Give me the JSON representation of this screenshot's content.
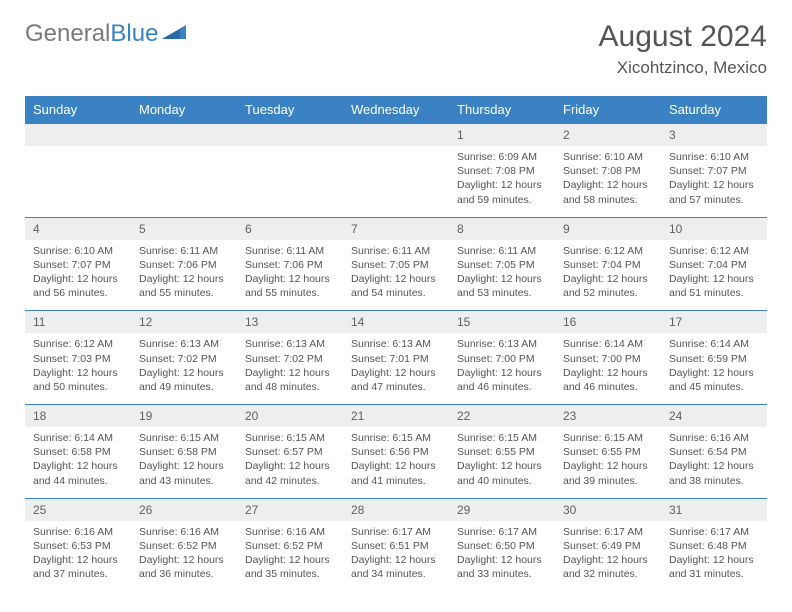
{
  "logo": {
    "text1": "General",
    "text2": "Blue"
  },
  "title": "August 2024",
  "location": "Xicohtzinco, Mexico",
  "colors": {
    "header_bg": "#3b82c4",
    "header_text": "#ffffff",
    "daynum_bg": "#eceef0",
    "daynum_text": "#606060",
    "body_text": "#555555",
    "logo_gray": "#7a7a7a",
    "logo_blue": "#3b82c4"
  },
  "daynames": [
    "Sunday",
    "Monday",
    "Tuesday",
    "Wednesday",
    "Thursday",
    "Friday",
    "Saturday"
  ],
  "weeks": [
    {
      "nums": [
        "",
        "",
        "",
        "",
        "1",
        "2",
        "3"
      ],
      "info": [
        [],
        [],
        [],
        [],
        [
          "Sunrise: 6:09 AM",
          "Sunset: 7:08 PM",
          "Daylight: 12 hours",
          "and 59 minutes."
        ],
        [
          "Sunrise: 6:10 AM",
          "Sunset: 7:08 PM",
          "Daylight: 12 hours",
          "and 58 minutes."
        ],
        [
          "Sunrise: 6:10 AM",
          "Sunset: 7:07 PM",
          "Daylight: 12 hours",
          "and 57 minutes."
        ]
      ]
    },
    {
      "nums": [
        "4",
        "5",
        "6",
        "7",
        "8",
        "9",
        "10"
      ],
      "info": [
        [
          "Sunrise: 6:10 AM",
          "Sunset: 7:07 PM",
          "Daylight: 12 hours",
          "and 56 minutes."
        ],
        [
          "Sunrise: 6:11 AM",
          "Sunset: 7:06 PM",
          "Daylight: 12 hours",
          "and 55 minutes."
        ],
        [
          "Sunrise: 6:11 AM",
          "Sunset: 7:06 PM",
          "Daylight: 12 hours",
          "and 55 minutes."
        ],
        [
          "Sunrise: 6:11 AM",
          "Sunset: 7:05 PM",
          "Daylight: 12 hours",
          "and 54 minutes."
        ],
        [
          "Sunrise: 6:11 AM",
          "Sunset: 7:05 PM",
          "Daylight: 12 hours",
          "and 53 minutes."
        ],
        [
          "Sunrise: 6:12 AM",
          "Sunset: 7:04 PM",
          "Daylight: 12 hours",
          "and 52 minutes."
        ],
        [
          "Sunrise: 6:12 AM",
          "Sunset: 7:04 PM",
          "Daylight: 12 hours",
          "and 51 minutes."
        ]
      ]
    },
    {
      "nums": [
        "11",
        "12",
        "13",
        "14",
        "15",
        "16",
        "17"
      ],
      "info": [
        [
          "Sunrise: 6:12 AM",
          "Sunset: 7:03 PM",
          "Daylight: 12 hours",
          "and 50 minutes."
        ],
        [
          "Sunrise: 6:13 AM",
          "Sunset: 7:02 PM",
          "Daylight: 12 hours",
          "and 49 minutes."
        ],
        [
          "Sunrise: 6:13 AM",
          "Sunset: 7:02 PM",
          "Daylight: 12 hours",
          "and 48 minutes."
        ],
        [
          "Sunrise: 6:13 AM",
          "Sunset: 7:01 PM",
          "Daylight: 12 hours",
          "and 47 minutes."
        ],
        [
          "Sunrise: 6:13 AM",
          "Sunset: 7:00 PM",
          "Daylight: 12 hours",
          "and 46 minutes."
        ],
        [
          "Sunrise: 6:14 AM",
          "Sunset: 7:00 PM",
          "Daylight: 12 hours",
          "and 46 minutes."
        ],
        [
          "Sunrise: 6:14 AM",
          "Sunset: 6:59 PM",
          "Daylight: 12 hours",
          "and 45 minutes."
        ]
      ]
    },
    {
      "nums": [
        "18",
        "19",
        "20",
        "21",
        "22",
        "23",
        "24"
      ],
      "info": [
        [
          "Sunrise: 6:14 AM",
          "Sunset: 6:58 PM",
          "Daylight: 12 hours",
          "and 44 minutes."
        ],
        [
          "Sunrise: 6:15 AM",
          "Sunset: 6:58 PM",
          "Daylight: 12 hours",
          "and 43 minutes."
        ],
        [
          "Sunrise: 6:15 AM",
          "Sunset: 6:57 PM",
          "Daylight: 12 hours",
          "and 42 minutes."
        ],
        [
          "Sunrise: 6:15 AM",
          "Sunset: 6:56 PM",
          "Daylight: 12 hours",
          "and 41 minutes."
        ],
        [
          "Sunrise: 6:15 AM",
          "Sunset: 6:55 PM",
          "Daylight: 12 hours",
          "and 40 minutes."
        ],
        [
          "Sunrise: 6:15 AM",
          "Sunset: 6:55 PM",
          "Daylight: 12 hours",
          "and 39 minutes."
        ],
        [
          "Sunrise: 6:16 AM",
          "Sunset: 6:54 PM",
          "Daylight: 12 hours",
          "and 38 minutes."
        ]
      ]
    },
    {
      "nums": [
        "25",
        "26",
        "27",
        "28",
        "29",
        "30",
        "31"
      ],
      "info": [
        [
          "Sunrise: 6:16 AM",
          "Sunset: 6:53 PM",
          "Daylight: 12 hours",
          "and 37 minutes."
        ],
        [
          "Sunrise: 6:16 AM",
          "Sunset: 6:52 PM",
          "Daylight: 12 hours",
          "and 36 minutes."
        ],
        [
          "Sunrise: 6:16 AM",
          "Sunset: 6:52 PM",
          "Daylight: 12 hours",
          "and 35 minutes."
        ],
        [
          "Sunrise: 6:17 AM",
          "Sunset: 6:51 PM",
          "Daylight: 12 hours",
          "and 34 minutes."
        ],
        [
          "Sunrise: 6:17 AM",
          "Sunset: 6:50 PM",
          "Daylight: 12 hours",
          "and 33 minutes."
        ],
        [
          "Sunrise: 6:17 AM",
          "Sunset: 6:49 PM",
          "Daylight: 12 hours",
          "and 32 minutes."
        ],
        [
          "Sunrise: 6:17 AM",
          "Sunset: 6:48 PM",
          "Daylight: 12 hours",
          "and 31 minutes."
        ]
      ]
    }
  ]
}
